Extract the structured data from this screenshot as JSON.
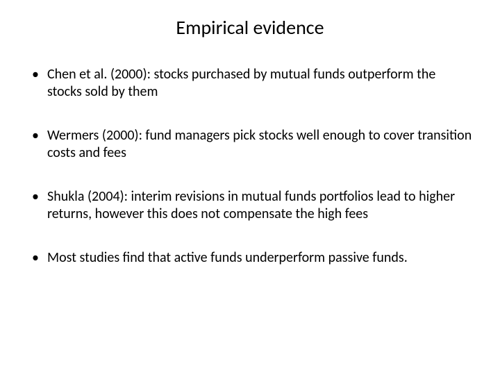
{
  "slide": {
    "title": "Empirical evidence",
    "bullets": [
      "Chen et al. (2000): stocks purchased by mutual funds outperform the stocks sold by them",
      "Wermers (2000): fund managers pick stocks well enough to cover transition costs and fees",
      "Shukla (2004): interim revisions in mutual funds portfolios lead to higher returns, however this does not compensate the high fees",
      "Most studies find that active funds underperform passive funds."
    ],
    "title_fontsize": 28,
    "body_fontsize": 20,
    "text_color": "#000000",
    "background_color": "#ffffff"
  }
}
